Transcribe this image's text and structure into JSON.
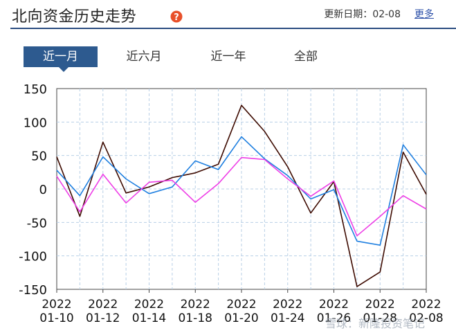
{
  "header": {
    "title": "北向资金历史走势",
    "update_label": "更新日期：",
    "update_date": "02-08",
    "more_label": "更多"
  },
  "tabs": [
    {
      "label": "近一月",
      "active": true
    },
    {
      "label": "近六月",
      "active": false
    },
    {
      "label": "近一年",
      "active": false
    },
    {
      "label": "全部",
      "active": false
    }
  ],
  "colors": {
    "accent": "#2d5a8f",
    "series_dark": "#3d0a00",
    "series_blue": "#1e7fe0",
    "series_pink": "#ee3ee6"
  },
  "watermark": "雪球：新隆投资笔记",
  "chart_data": {
    "type": "line",
    "ylim": [
      -150,
      150
    ],
    "yticks": [
      150,
      100,
      50,
      0,
      -50,
      -100,
      -150
    ],
    "x_labels": [
      {
        "year": "2022",
        "md": "01-10"
      },
      {
        "year": "2022",
        "md": "01-12"
      },
      {
        "year": "2022",
        "md": "01-14"
      },
      {
        "year": "2022",
        "md": "01-18"
      },
      {
        "year": "2022",
        "md": "01-20"
      },
      {
        "year": "2022",
        "md": "01-24"
      },
      {
        "year": "2022",
        "md": "01-26"
      },
      {
        "year": "2022",
        "md": "01-28"
      },
      {
        "year": "2022",
        "md": "02-08"
      }
    ],
    "x": [
      "01-10",
      "01-11",
      "01-12",
      "01-13",
      "01-14",
      "01-17",
      "01-18",
      "01-19",
      "01-20",
      "01-21",
      "01-24",
      "01-25",
      "01-26",
      "01-27",
      "01-28",
      "02-07",
      "02-08"
    ],
    "series": [
      {
        "color": "#3d0a00",
        "values": [
          48,
          -41,
          70,
          -6,
          3,
          17,
          24,
          37,
          125,
          86,
          33,
          -36,
          11,
          -146,
          -124,
          55,
          -8
        ]
      },
      {
        "color": "#1e7fe0",
        "values": [
          28,
          -10,
          48,
          15,
          -7,
          3,
          42,
          29,
          78,
          45,
          20,
          -15,
          -1,
          -78,
          -84,
          66,
          21
        ]
      },
      {
        "color": "#ee3ee6",
        "values": [
          19,
          -34,
          22,
          -21,
          10,
          13,
          -20,
          8,
          47,
          44,
          15,
          -11,
          12,
          -70,
          -41,
          -10,
          -30
        ]
      }
    ]
  }
}
